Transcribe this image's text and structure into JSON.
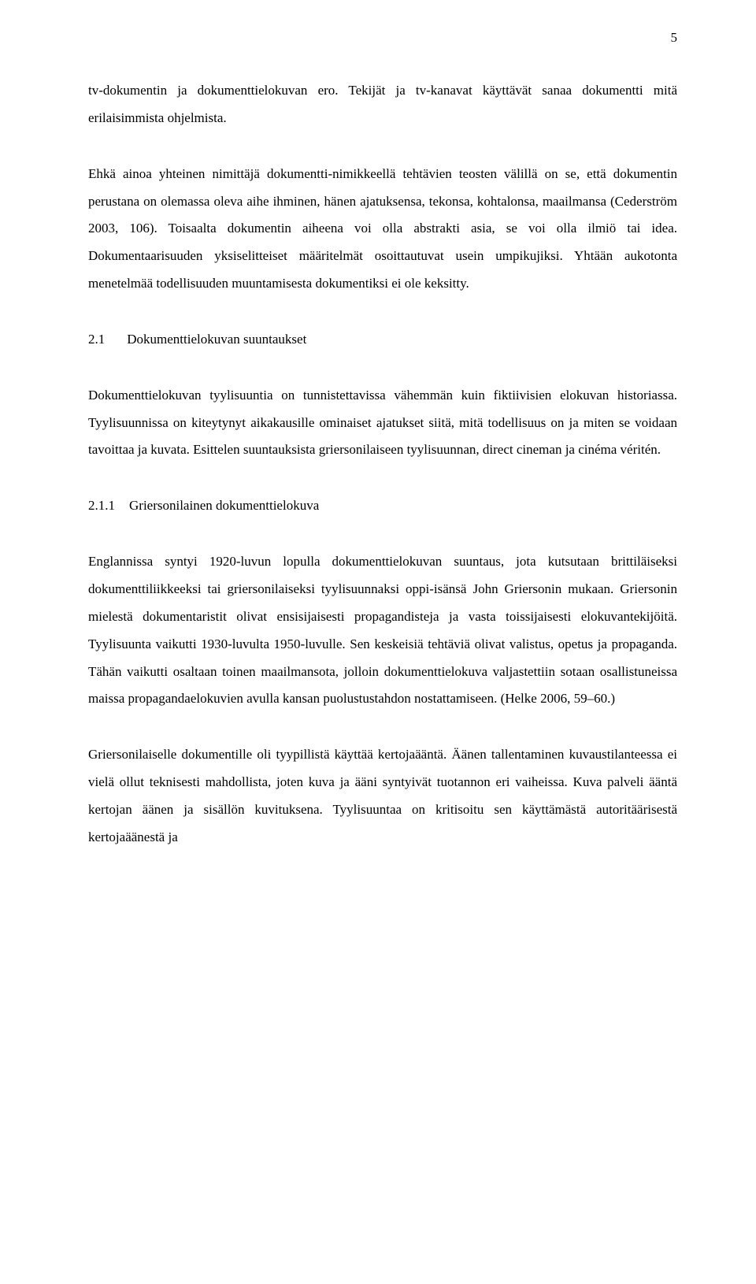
{
  "page_number": "5",
  "paragraphs": {
    "p1": "tv-dokumentin ja dokumenttielokuvan ero. Tekijät ja tv-kanavat käyttävät sanaa dokumentti mitä erilaisimmista ohjelmista.",
    "p2": "Ehkä ainoa yhteinen nimittäjä dokumentti-nimikkeellä tehtävien teosten välillä on se, että dokumentin perustana on olemassa oleva aihe ihminen, hänen ajatuksensa, tekonsa, kohtalonsa, maailmansa (Cederström 2003, 106). Toisaalta dokumentin aiheena voi olla abstrakti asia, se voi olla ilmiö tai idea. Dokumentaarisuuden yksiselitteiset määritelmät osoittautuvat usein umpikujiksi. Yhtään aukotonta menetelmää todellisuuden muuntamisesta dokumentiksi ei ole keksitty.",
    "p3": "Dokumenttielokuvan tyylisuuntia on tunnistettavissa vähemmän kuin fiktiivisien elokuvan historiassa. Tyylisuunnissa on kiteytynyt aikakausille ominaiset ajatukset siitä, mitä todellisuus on ja miten se voidaan tavoittaa ja kuvata. Esittelen suuntauksista griersonilaiseen tyylisuunnan, direct cineman ja cinéma véritén.",
    "p4": "Englannissa syntyi 1920-luvun lopulla dokumenttielokuvan suuntaus, jota kutsutaan brittiläiseksi dokumenttiliikkeeksi tai griersonilaiseksi tyylisuunnaksi oppi-isänsä John Griersonin mukaan. Griersonin mielestä dokumentaristit olivat ensisijaisesti propagandisteja ja vasta toissijaisesti elokuvantekijöitä. Tyylisuunta vaikutti 1930-luvulta 1950-luvulle. Sen keskeisiä tehtäviä olivat valistus, opetus ja propaganda. Tähän vaikutti osaltaan toinen maailmansota, jolloin dokumenttielokuva valjastettiin sotaan osallistuneissa maissa propagandaelokuvien avulla kansan puolustustahdon nostattamiseen. (Helke 2006, 59–60.)",
    "p5": "Griersonilaiselle dokumentille oli tyypillistä käyttää kertojaääntä. Äänen tallentaminen kuvaustilanteessa ei vielä ollut teknisesti mahdollista, joten kuva ja ääni syntyivät tuotannon eri vaiheissa. Kuva palveli ääntä kertojan äänen ja sisällön kuvituksena. Tyylisuuntaa on kritisoitu sen käyttämästä autoritäärisestä kertojaäänestä ja"
  },
  "headings": {
    "section_2_1_number": "2.1",
    "section_2_1_title": "Dokumenttielokuvan suuntaukset",
    "section_2_1_1_number": "2.1.1",
    "section_2_1_1_title": "Griersonilainen dokumenttielokuva"
  }
}
